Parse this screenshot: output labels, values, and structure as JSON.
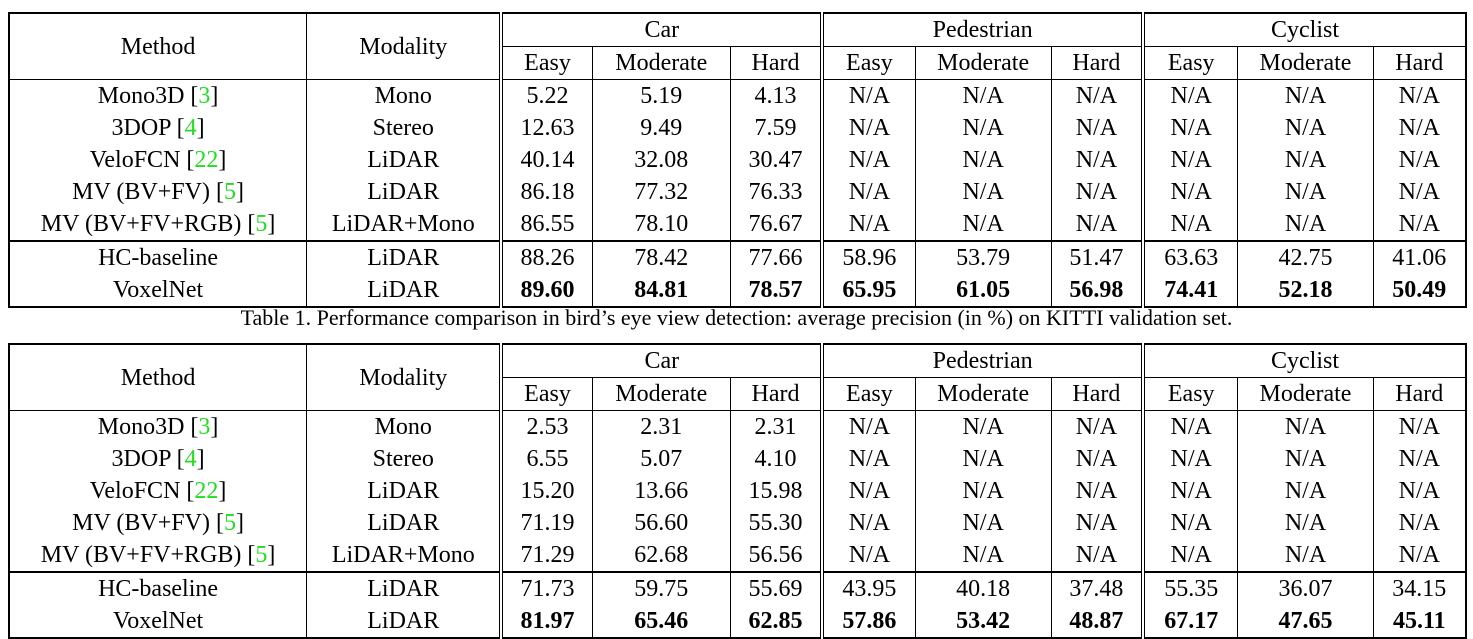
{
  "tables": [
    {
      "headers": {
        "method": "Method",
        "modality": "Modality",
        "groups": [
          "Car",
          "Pedestrian",
          "Cyclist"
        ],
        "levels": [
          "Easy",
          "Moderate",
          "Hard"
        ]
      },
      "rows": [
        {
          "method": "Mono3D",
          "ref": "3",
          "modality": "Mono",
          "values": [
            "5.22",
            "5.19",
            "4.13",
            "N/A",
            "N/A",
            "N/A",
            "N/A",
            "N/A",
            "N/A"
          ]
        },
        {
          "method": "3DOP",
          "ref": "4",
          "modality": "Stereo",
          "values": [
            "12.63",
            "9.49",
            "7.59",
            "N/A",
            "N/A",
            "N/A",
            "N/A",
            "N/A",
            "N/A"
          ]
        },
        {
          "method": "VeloFCN",
          "ref": "22",
          "modality": "LiDAR",
          "values": [
            "40.14",
            "32.08",
            "30.47",
            "N/A",
            "N/A",
            "N/A",
            "N/A",
            "N/A",
            "N/A"
          ]
        },
        {
          "method": "MV (BV+FV)",
          "ref": "5",
          "modality": "LiDAR",
          "values": [
            "86.18",
            "77.32",
            "76.33",
            "N/A",
            "N/A",
            "N/A",
            "N/A",
            "N/A",
            "N/A"
          ]
        },
        {
          "method": "MV (BV+FV+RGB)",
          "ref": "5",
          "modality": "LiDAR+Mono",
          "values": [
            "86.55",
            "78.10",
            "76.67",
            "N/A",
            "N/A",
            "N/A",
            "N/A",
            "N/A",
            "N/A"
          ]
        },
        {
          "method": "HC-baseline",
          "modality": "LiDAR",
          "values": [
            "88.26",
            "78.42",
            "77.66",
            "58.96",
            "53.79",
            "51.47",
            "63.63",
            "42.75",
            "41.06"
          ]
        },
        {
          "method": "VoxelNet",
          "modality": "LiDAR",
          "bold": true,
          "values": [
            "89.60",
            "84.81",
            "78.57",
            "65.95",
            "61.05",
            "56.98",
            "74.41",
            "52.18",
            "50.49"
          ]
        }
      ],
      "caption": "Table 1. Performance comparison in bird’s eye view detection: average precision (in %) on KITTI validation set."
    },
    {
      "headers": {
        "method": "Method",
        "modality": "Modality",
        "groups": [
          "Car",
          "Pedestrian",
          "Cyclist"
        ],
        "levels": [
          "Easy",
          "Moderate",
          "Hard"
        ]
      },
      "rows": [
        {
          "method": "Mono3D",
          "ref": "3",
          "modality": "Mono",
          "values": [
            "2.53",
            "2.31",
            "2.31",
            "N/A",
            "N/A",
            "N/A",
            "N/A",
            "N/A",
            "N/A"
          ]
        },
        {
          "method": "3DOP",
          "ref": "4",
          "modality": "Stereo",
          "values": [
            "6.55",
            "5.07",
            "4.10",
            "N/A",
            "N/A",
            "N/A",
            "N/A",
            "N/A",
            "N/A"
          ]
        },
        {
          "method": "VeloFCN",
          "ref": "22",
          "modality": "LiDAR",
          "values": [
            "15.20",
            "13.66",
            "15.98",
            "N/A",
            "N/A",
            "N/A",
            "N/A",
            "N/A",
            "N/A"
          ]
        },
        {
          "method": "MV (BV+FV)",
          "ref": "5",
          "modality": "LiDAR",
          "values": [
            "71.19",
            "56.60",
            "55.30",
            "N/A",
            "N/A",
            "N/A",
            "N/A",
            "N/A",
            "N/A"
          ]
        },
        {
          "method": "MV (BV+FV+RGB)",
          "ref": "5",
          "modality": "LiDAR+Mono",
          "values": [
            "71.29",
            "62.68",
            "56.56",
            "N/A",
            "N/A",
            "N/A",
            "N/A",
            "N/A",
            "N/A"
          ]
        },
        {
          "method": "HC-baseline",
          "modality": "LiDAR",
          "values": [
            "71.73",
            "59.75",
            "55.69",
            "43.95",
            "40.18",
            "37.48",
            "55.35",
            "36.07",
            "34.15"
          ]
        },
        {
          "method": "VoxelNet",
          "modality": "LiDAR",
          "bold": true,
          "values": [
            "81.97",
            "65.46",
            "62.85",
            "57.86",
            "53.42",
            "48.87",
            "67.17",
            "47.65",
            "45.11"
          ]
        }
      ]
    }
  ]
}
